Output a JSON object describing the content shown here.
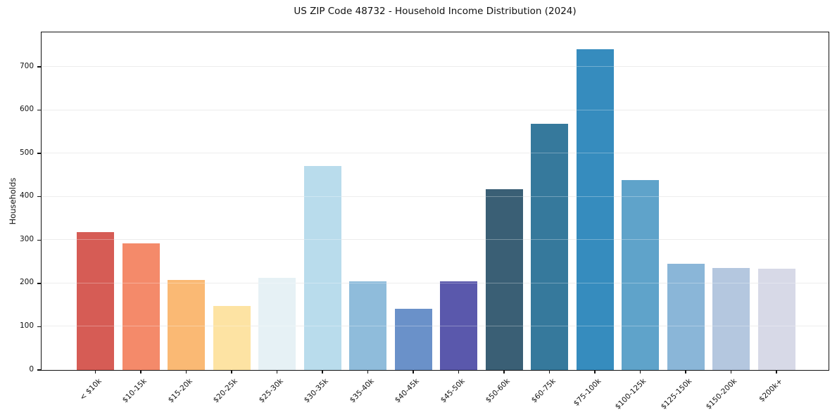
{
  "chart_data": {
    "type": "bar",
    "title": "US ZIP Code 48732 - Household Income Distribution (2024)",
    "xlabel": "",
    "ylabel": "Households",
    "categories": [
      "< $10k",
      "$10-15k",
      "$15-20k",
      "$20-25k",
      "$25-30k",
      "$30-35k",
      "$35-40k",
      "$40-45k",
      "$45-50k",
      "$50-60k",
      "$60-75k",
      "$75-100k",
      "$100-125k",
      "$125-150k",
      "$150-200k",
      "$200k+"
    ],
    "values": [
      318,
      292,
      208,
      147,
      213,
      471,
      204,
      142,
      205,
      418,
      568,
      741,
      439,
      246,
      236,
      234
    ],
    "bar_colors": [
      "#d65c55",
      "#f48a6a",
      "#fab974",
      "#fde3a3",
      "#e6f1f5",
      "#b9dcec",
      "#8fbcdb",
      "#6a91c9",
      "#5a58ac",
      "#3a5f75",
      "#36799c",
      "#368cbe",
      "#5fa3ca",
      "#8ab6d8",
      "#b4c7df",
      "#d7d9e7"
    ],
    "yticks": [
      0,
      100,
      200,
      300,
      400,
      500,
      600,
      700
    ],
    "ylim": [
      0,
      778
    ],
    "grid": "horizontal-only",
    "legend": "none",
    "background_color": "#ffffff",
    "spine_color": "#111111",
    "gridline_color": "#e6e6e6"
  }
}
